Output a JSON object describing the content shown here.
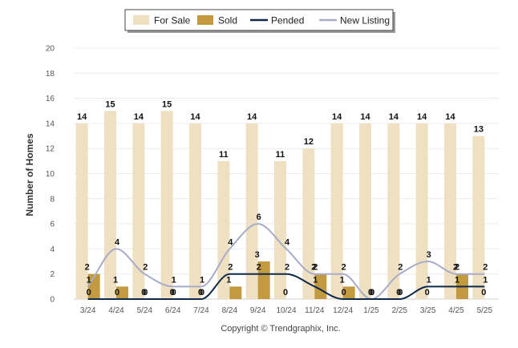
{
  "chart_data": {
    "type": "bar",
    "ylabel": "Number of Homes",
    "xlabel": "",
    "ylim": [
      0,
      20
    ],
    "yticks": [
      0,
      2,
      4,
      6,
      8,
      10,
      12,
      14,
      16,
      18,
      20
    ],
    "grid": true,
    "legend_position": "top-center",
    "categories": [
      "3/24",
      "4/24",
      "5/24",
      "6/24",
      "7/24",
      "8/24",
      "9/24",
      "10/24",
      "11/24",
      "12/24",
      "1/25",
      "2/25",
      "3/25",
      "4/25",
      "5/25"
    ],
    "series": [
      {
        "name": "For Sale",
        "kind": "bar",
        "color": "#efe0c2",
        "values": [
          14,
          15,
          14,
          15,
          14,
          11,
          14,
          11,
          12,
          14,
          14,
          14,
          14,
          14,
          13
        ]
      },
      {
        "name": "Sold",
        "kind": "bar",
        "color": "#c39a40",
        "values": [
          2,
          1,
          0,
          0,
          0,
          1,
          3,
          0,
          2,
          1,
          0,
          0,
          0,
          2,
          0
        ]
      },
      {
        "name": "Pended",
        "kind": "line",
        "color": "#0f2a4a",
        "values": [
          0,
          0,
          0,
          0,
          0,
          2,
          2,
          2,
          1,
          0,
          0,
          0,
          1,
          1,
          1
        ]
      },
      {
        "name": "New Listing",
        "kind": "line",
        "color": "#a7acc9",
        "values": [
          1,
          4,
          2,
          1,
          1,
          4,
          6,
          4,
          2,
          2,
          0,
          2,
          3,
          2,
          2
        ]
      }
    ]
  },
  "copyright": "Copyright © Trendgraphix, Inc."
}
